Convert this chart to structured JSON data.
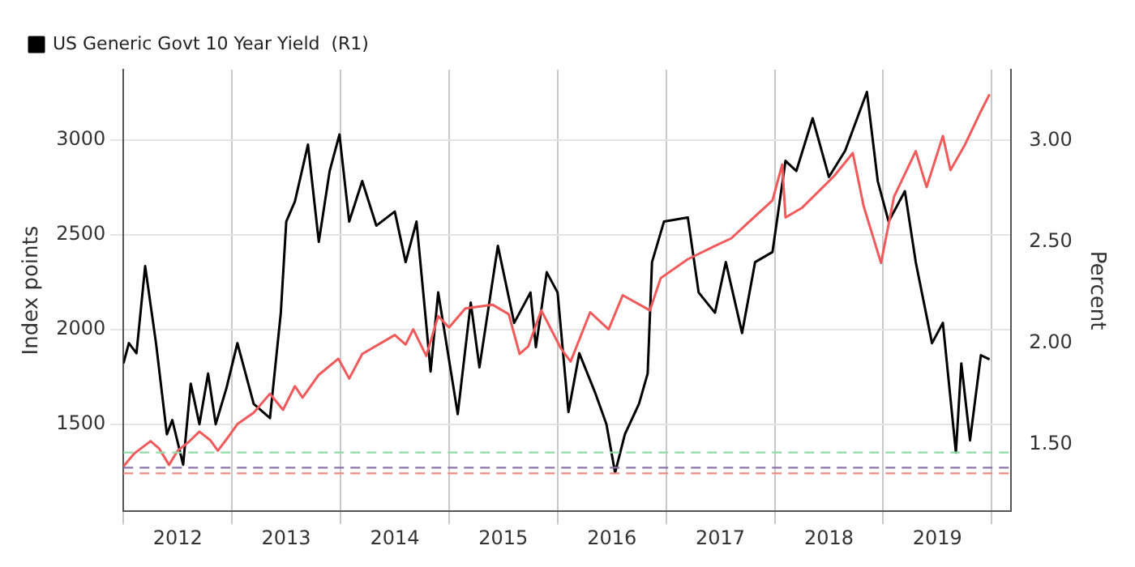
{
  "chart_data": {
    "type": "line",
    "ylabel": "Index points",
    "y2label": "Percent",
    "xlim": [
      2012,
      2020.18
    ],
    "xticks": [
      {
        "value": 2012,
        "label": null
      },
      {
        "value": 2012.5,
        "label": "2012"
      },
      {
        "value": 2013,
        "label": null
      },
      {
        "value": 2013.5,
        "label": "2013"
      },
      {
        "value": 2014,
        "label": null
      },
      {
        "value": 2014.5,
        "label": "2014"
      },
      {
        "value": 2015,
        "label": null
      },
      {
        "value": 2015.5,
        "label": "2015"
      },
      {
        "value": 2016,
        "label": null
      },
      {
        "value": 2016.5,
        "label": "2016"
      },
      {
        "value": 2017,
        "label": null
      },
      {
        "value": 2017.5,
        "label": "2017"
      },
      {
        "value": 2018,
        "label": null
      },
      {
        "value": 2018.5,
        "label": "2018"
      },
      {
        "value": 2019,
        "label": null
      },
      {
        "value": 2019.5,
        "label": "2019"
      },
      {
        "value": 2020,
        "label": null
      }
    ],
    "ylim": [
      1040,
      3370
    ],
    "yticks": [
      {
        "value": 1500,
        "label": "1500"
      },
      {
        "value": 2000,
        "label": "2000"
      },
      {
        "value": 2500,
        "label": "2500"
      },
      {
        "value": 3000,
        "label": "3000"
      }
    ],
    "y2lim": [
      1.17,
      3.35
    ],
    "y2ticks": [
      {
        "value": 1.5,
        "label": "1.50"
      },
      {
        "value": 2,
        "label": "2.00"
      },
      {
        "value": 2.5,
        "label": "2.50"
      },
      {
        "value": 3,
        "label": "3.00"
      }
    ],
    "grid": true,
    "legend": "top left",
    "marker": "none",
    "line_style": "solid",
    "ref_lines": [
      {
        "axis": "y",
        "value": 1350,
        "color": "#8fdca8",
        "line_style": "dashed"
      },
      {
        "axis": "y",
        "value": 1270,
        "color": "#8a74a8",
        "line_style": "dashed"
      },
      {
        "axis": "y",
        "value": 1240,
        "color": "#f08a80",
        "line_style": "dashed"
      }
    ],
    "series": [
      {
        "color": "#f05a5a",
        "x": [
          2012.0,
          2012.1,
          2012.25,
          2012.33,
          2012.42,
          2012.5,
          2012.6,
          2012.7,
          2012.8,
          2012.87,
          2012.95,
          2013.05,
          2013.2,
          2013.35,
          2013.47,
          2013.58,
          2013.65,
          2013.8,
          2013.98,
          2014.08,
          2014.2,
          2014.5,
          2014.6,
          2014.67,
          2014.79,
          2014.9,
          2015.0,
          2015.15,
          2015.4,
          2015.55,
          2015.65,
          2015.73,
          2015.85,
          2016.03,
          2016.12,
          2016.3,
          2016.47,
          2016.6,
          2016.85,
          2016.95,
          2017.2,
          2017.45,
          2017.6,
          2017.75,
          2017.98,
          2018.07,
          2018.1,
          2018.25,
          2018.55,
          2018.72,
          2018.82,
          2018.98,
          2019.1,
          2019.3,
          2019.4,
          2019.55,
          2019.62,
          2019.75,
          2019.9,
          2019.98
        ],
        "values": [
          1277,
          1345,
          1410,
          1370,
          1285,
          1360,
          1405,
          1460,
          1415,
          1360,
          1420,
          1500,
          1560,
          1660,
          1575,
          1700,
          1640,
          1760,
          1845,
          1740,
          1870,
          1970,
          1920,
          2000,
          1860,
          2070,
          2010,
          2110,
          2130,
          2080,
          1870,
          1910,
          2100,
          1900,
          1830,
          2090,
          2000,
          2180,
          2100,
          2270,
          2370,
          2440,
          2480,
          2560,
          2680,
          2870,
          2590,
          2640,
          2810,
          2930,
          2650,
          2350,
          2700,
          2940,
          2750,
          3020,
          2840,
          2970,
          3150,
          3240
        ]
      },
      {
        "name": "US Generic Govt 10 Year Yield  (R1)",
        "color": "#000000",
        "axis": "y2",
        "x": [
          2012.0,
          2012.05,
          2012.12,
          2012.2,
          2012.3,
          2012.4,
          2012.45,
          2012.55,
          2012.62,
          2012.7,
          2012.78,
          2012.85,
          2012.95,
          2013.05,
          2013.2,
          2013.35,
          2013.45,
          2013.5,
          2013.58,
          2013.7,
          2013.8,
          2013.9,
          2013.99,
          2014.08,
          2014.2,
          2014.33,
          2014.5,
          2014.6,
          2014.7,
          2014.78,
          2014.83,
          2014.9,
          2015.08,
          2015.2,
          2015.28,
          2015.45,
          2015.6,
          2015.75,
          2015.8,
          2015.9,
          2016.0,
          2016.1,
          2016.2,
          2016.35,
          2016.45,
          2016.53,
          2016.62,
          2016.75,
          2016.83,
          2016.87,
          2016.98,
          2017.2,
          2017.3,
          2017.45,
          2017.55,
          2017.7,
          2017.82,
          2017.98,
          2018.1,
          2018.2,
          2018.35,
          2018.5,
          2018.65,
          2018.85,
          2018.95,
          2019.05,
          2019.2,
          2019.3,
          2019.45,
          2019.55,
          2019.67,
          2019.72,
          2019.8,
          2019.9,
          2019.98
        ],
        "values": [
          1.9,
          2.0,
          1.95,
          2.38,
          2.0,
          1.55,
          1.62,
          1.4,
          1.8,
          1.6,
          1.85,
          1.6,
          1.78,
          2.0,
          1.7,
          1.63,
          2.15,
          2.6,
          2.7,
          2.98,
          2.5,
          2.85,
          3.03,
          2.6,
          2.8,
          2.58,
          2.65,
          2.4,
          2.6,
          2.15,
          1.86,
          2.25,
          1.65,
          2.2,
          1.88,
          2.48,
          2.1,
          2.25,
          1.98,
          2.35,
          2.25,
          1.66,
          1.95,
          1.75,
          1.6,
          1.36,
          1.55,
          1.7,
          1.85,
          2.4,
          2.6,
          2.62,
          2.25,
          2.15,
          2.4,
          2.05,
          2.4,
          2.45,
          2.9,
          2.85,
          3.11,
          2.82,
          2.95,
          3.24,
          2.8,
          2.6,
          2.75,
          2.4,
          2.0,
          2.1,
          1.46,
          1.9,
          1.52,
          1.94,
          1.92
        ]
      }
    ]
  }
}
